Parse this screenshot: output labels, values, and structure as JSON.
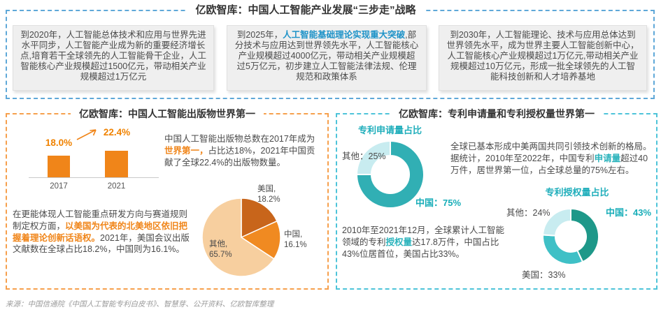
{
  "top_section": {
    "title": "亿欧智库：中国人工智能产业发展“三步走”战略",
    "boxes": [
      {
        "pre": "到2020年，人工智能总体技术和应用与世界先进水平同步，人工智能产业成为新的重要经济增长点,培育若干全球领先的人工智能骨干企业，人工智能核心产业规模超过1500亿元，带动相关产业规模超过1万亿元",
        "highlight": "",
        "post": ""
      },
      {
        "pre": "到2025年，",
        "highlight": "人工智能基础理论实现重大突破",
        "post": ",部分技术与应用达到世界领先水平，人工智能核心产业规模超过4000亿元，带动相关产业规模超过5万亿元，初步建立人工智能法律法规、伦理规范和政策体系"
      },
      {
        "pre": "到2030年，人工智能理论、技术与应用总体达到世界领先水平，成为世界主要人工智能创新中心，人工智能核心产业规模超过1万亿元,带动相关产业规模超过10万亿元，形成一批全球领先的人工智能科技创新和人才培养基地",
        "highlight": "",
        "post": ""
      }
    ]
  },
  "left_panel": {
    "title": "亿欧智库：中国人工智能出版物世界第一",
    "para1": {
      "pre": "中国人工智能出版物总数在2017年成为",
      "highlight": "世界第一，",
      "post": "占比达18%，2021年中国贡献了全球22.4%的出版物数量。"
    },
    "para2": {
      "pre": "在更能体现人工智能重点研发方向与赛道规则制定权方面，",
      "highlight": "以美国为代表的北美地区依旧把握着理论创新话语权。",
      "post": "2021年，美国会议出版文献数在全球占比18.2%，中国则为16.1%。"
    }
  },
  "right_panel": {
    "title": "亿欧智库：专利申请量和专利授权量世界第一",
    "para1": {
      "pre": "全球已基本形成中美两国共同引领技术创新的格局。据统计，2010年至2022年，中国专利",
      "highlight": "申请量",
      "post": "超过40万件，居世界第一位，占全球总量的75%左右。"
    },
    "para2": {
      "pre": "2010年至2021年12月，全球累计人工智能领域的专利",
      "highlight": "授权量",
      "post": "达17.8万件，中国占比43%位居首位，美国占比33%。"
    }
  },
  "chart_data": [
    {
      "type": "bar",
      "title": "亿欧智库：中国人工智能出版物世界第一",
      "categories": [
        "2017",
        "2021"
      ],
      "values": [
        18.0,
        22.4
      ],
      "value_labels": [
        "18.0%",
        "22.4%"
      ],
      "unit": "%",
      "bar_color": "#f08519",
      "annotation": "upward arrow from 2017 bar to 2021 bar",
      "ylim": [
        0,
        25
      ]
    },
    {
      "type": "pie",
      "labels": [
        "美国",
        "中国",
        "其他"
      ],
      "values": [
        18.2,
        16.1,
        65.7
      ],
      "colors": [
        "#c8651b",
        "#f08a21",
        "#f7cf9f"
      ],
      "start_angle": 0,
      "direction": "clockwise",
      "point_labels": [
        {
          "line1": "美国,",
          "line2": "18.2%"
        },
        {
          "line1": "中国,",
          "line2": "16.1%"
        },
        {
          "line1": "其他,",
          "line2": "65.7%"
        }
      ]
    },
    {
      "type": "pie",
      "subtype": "donut",
      "title": "专利申请量占比",
      "labels": [
        "中国",
        "其他"
      ],
      "values": [
        75,
        25
      ],
      "colors": [
        "#31afb4",
        "#c8ecf0"
      ],
      "start_angle": 0,
      "direction": "clockwise",
      "point_labels": {
        "china": "中国：75%",
        "others": "其他：25%"
      }
    },
    {
      "type": "pie",
      "subtype": "donut",
      "title": "专利授权量占比",
      "labels": [
        "中国",
        "美国",
        "其他"
      ],
      "values": [
        43,
        33,
        24
      ],
      "colors": [
        "#1e9889",
        "#3fc0c6",
        "#c8ecf0"
      ],
      "start_angle": 0,
      "direction": "clockwise",
      "point_labels": {
        "china": "中国：43%",
        "usa": "美国：33%",
        "others": "其他：24%"
      }
    }
  ],
  "footer": {
    "source": "来源：中国信通院《中国人工智能专利白皮书》、智慧芽、公开资料、亿欧智库整理"
  },
  "colors": {
    "accent_orange": "#f08519",
    "accent_teal": "#1faebb",
    "accent_blue": "#1e93c8",
    "border_blue": "#5fa8d8",
    "border_orange": "#f6a04d",
    "border_cyan": "#4ec4d9"
  }
}
